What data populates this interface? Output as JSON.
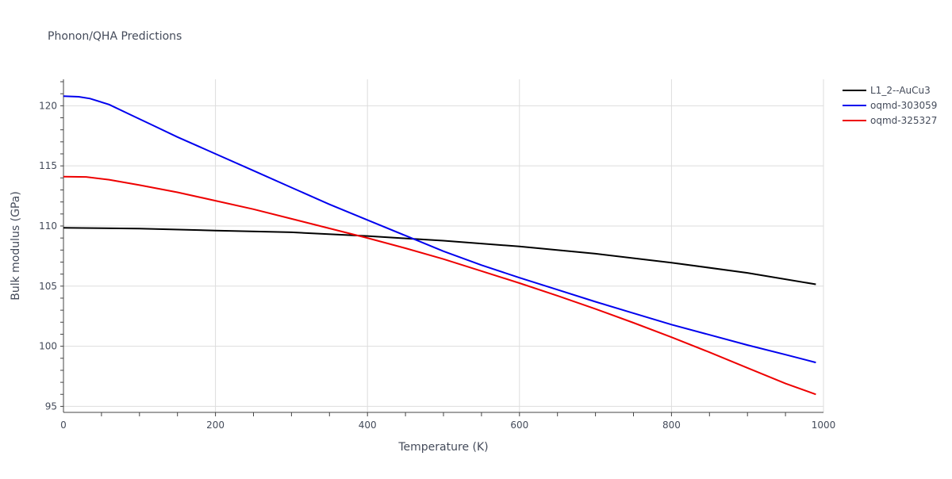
{
  "chart_data": {
    "type": "line",
    "title": "Phonon/QHA Predictions",
    "xlabel": "Temperature (K)",
    "ylabel": "Bulk modulus (GPa)",
    "xlim": [
      0,
      1000
    ],
    "ylim": [
      94.5,
      122.2
    ],
    "xticks": [
      0,
      200,
      400,
      600,
      800,
      1000
    ],
    "yticks": [
      95,
      100,
      105,
      110,
      115,
      120
    ],
    "xtick_labels": [
      "0",
      "200",
      "400",
      "600",
      "800",
      "1000"
    ],
    "ytick_labels": [
      "95",
      "100",
      "105",
      "110",
      "115",
      "120"
    ],
    "grid": true,
    "legend_position": "top-right",
    "series": [
      {
        "name": "L1_2--AuCu3",
        "color": "#000000",
        "x": [
          0,
          50,
          100,
          200,
          300,
          400,
          450,
          500,
          600,
          700,
          800,
          900,
          990
        ],
        "y": [
          109.85,
          109.82,
          109.78,
          109.62,
          109.48,
          109.17,
          108.97,
          108.78,
          108.3,
          107.7,
          106.95,
          106.1,
          105.15
        ]
      },
      {
        "name": "oqmd-303059",
        "color": "#0000ee",
        "x": [
          0,
          20,
          35,
          60,
          90,
          120,
          150,
          200,
          250,
          300,
          350,
          400,
          450,
          500,
          550,
          600,
          650,
          700,
          750,
          800,
          850,
          900,
          950,
          990
        ],
        "y": [
          120.8,
          120.75,
          120.6,
          120.1,
          119.2,
          118.3,
          117.4,
          116.0,
          114.6,
          113.2,
          111.8,
          110.5,
          109.2,
          107.9,
          106.75,
          105.7,
          104.7,
          103.7,
          102.75,
          101.8,
          100.95,
          100.1,
          99.3,
          98.65
        ]
      },
      {
        "name": "oqmd-325327",
        "color": "#ee0000",
        "x": [
          0,
          30,
          60,
          100,
          150,
          200,
          250,
          300,
          350,
          400,
          450,
          500,
          550,
          600,
          650,
          700,
          750,
          800,
          850,
          900,
          950,
          990
        ],
        "y": [
          114.1,
          114.08,
          113.85,
          113.4,
          112.8,
          112.1,
          111.4,
          110.6,
          109.8,
          109.0,
          108.15,
          107.25,
          106.25,
          105.25,
          104.2,
          103.1,
          101.95,
          100.75,
          99.5,
          98.2,
          96.9,
          96.0
        ]
      }
    ]
  }
}
